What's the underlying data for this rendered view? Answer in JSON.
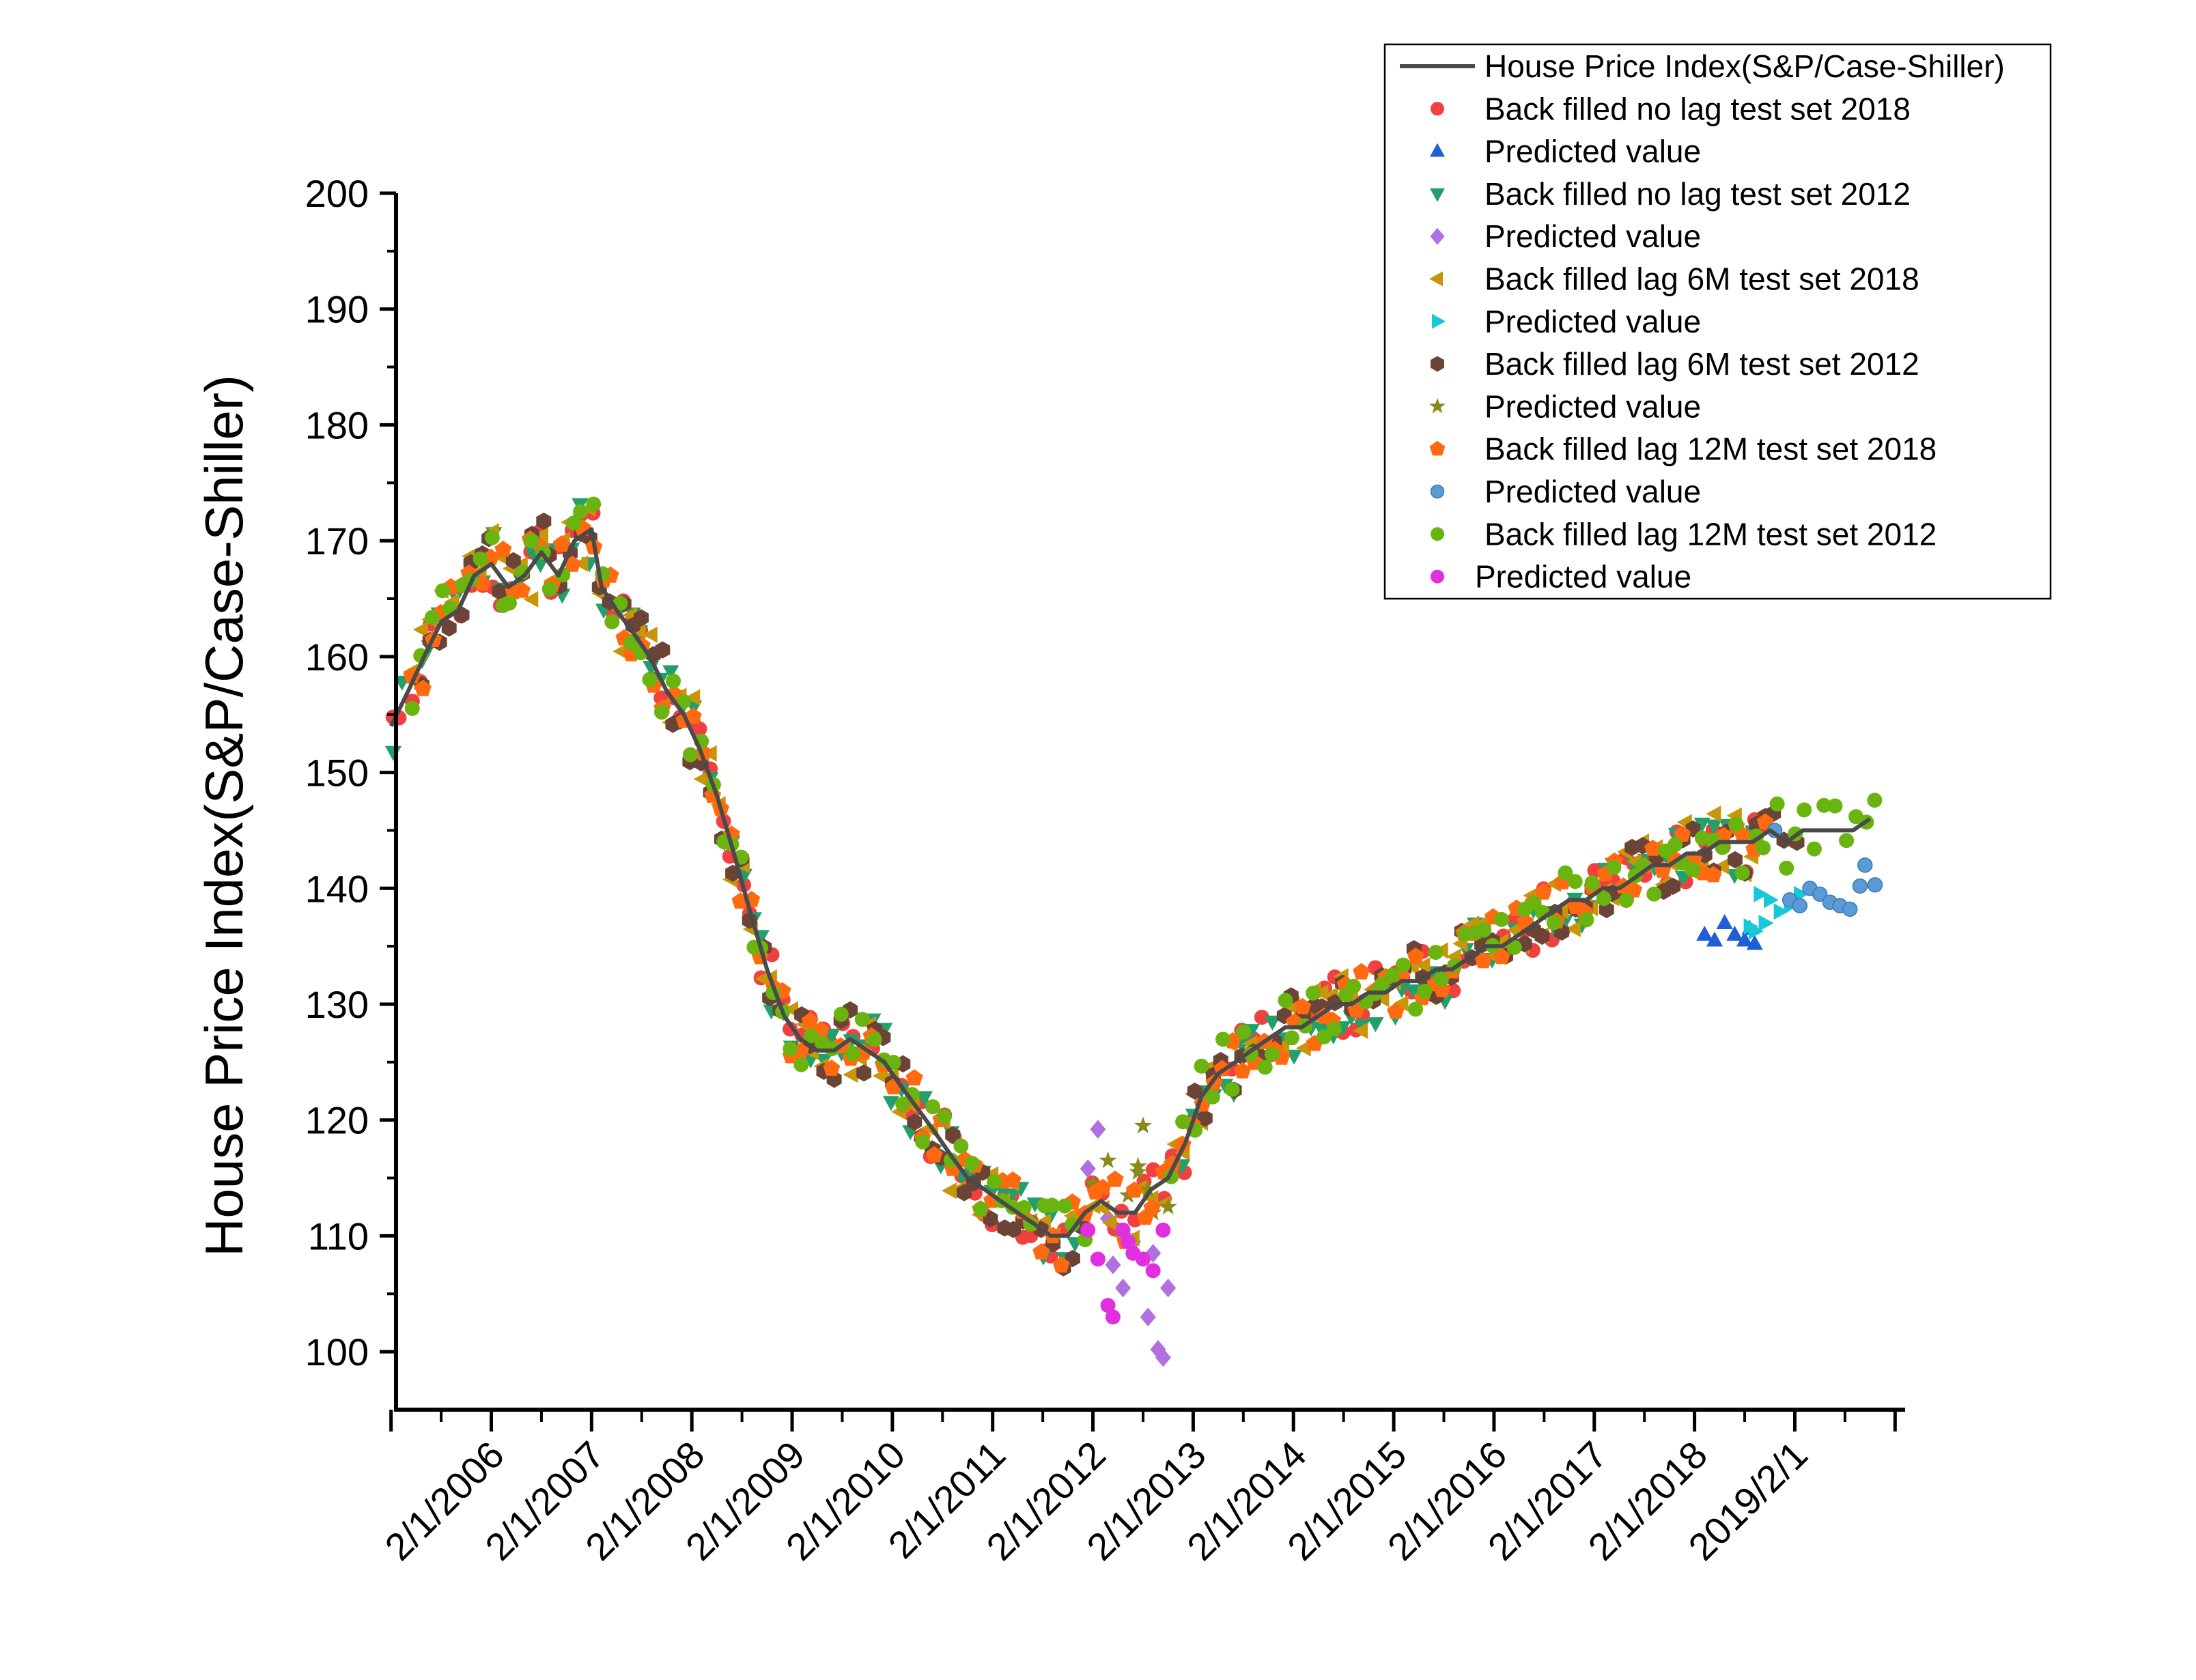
{
  "chart_data": {
    "type": "scatter",
    "title": "",
    "ylabel": "House Price Index(S&P/Case-Shiller)",
    "xlabel": "",
    "ylim": [
      95,
      200
    ],
    "yticks": [
      100,
      110,
      120,
      130,
      140,
      150,
      160,
      170,
      180,
      190,
      200
    ],
    "x_tick_labels": [
      "2/1/2006",
      "2/1/2007",
      "2/1/2008",
      "2/1/2009",
      "2/1/2010",
      "2/1/2011",
      "2/1/2012",
      "2/1/2013",
      "2/1/2014",
      "2/1/2015",
      "2/1/2016",
      "2/1/2017",
      "2/1/2018",
      "2019/2/1"
    ],
    "x_tick_values": [
      2006,
      2007,
      2008,
      2009,
      2010,
      2011,
      2012,
      2013,
      2014,
      2015,
      2016,
      2017,
      2018,
      2019
    ],
    "xlim": [
      2005.05,
      2020.1
    ],
    "legend_position": "top-right",
    "line": {
      "name": "House Price Index(S&P/Case-Shiller)",
      "color": "#4a4a4a",
      "x": [
        2005.0,
        2005.17,
        2005.33,
        2005.5,
        2005.67,
        2005.83,
        2006.0,
        2006.17,
        2006.33,
        2006.5,
        2006.67,
        2006.83,
        2007.0,
        2007.1,
        2007.25,
        2007.42,
        2007.58,
        2007.75,
        2007.92,
        2008.08,
        2008.25,
        2008.42,
        2008.58,
        2008.75,
        2008.92,
        2009.08,
        2009.25,
        2009.42,
        2009.58,
        2009.75,
        2009.92,
        2010.08,
        2010.25,
        2010.42,
        2010.58,
        2010.75,
        2010.92,
        2011.08,
        2011.25,
        2011.42,
        2011.58,
        2011.75,
        2011.92,
        2012.08,
        2012.25,
        2012.42,
        2012.58,
        2012.75,
        2012.92,
        2013.08,
        2013.25,
        2013.42,
        2013.58,
        2013.75,
        2013.92,
        2014.08,
        2014.25,
        2014.42,
        2014.58,
        2014.75,
        2014.92,
        2015.08,
        2015.25,
        2015.42,
        2015.58,
        2015.75,
        2015.92,
        2016.08,
        2016.25,
        2016.42,
        2016.58,
        2016.75,
        2016.92,
        2017.08,
        2017.25,
        2017.42,
        2017.58,
        2017.75,
        2017.92,
        2018.08,
        2018.25,
        2018.42,
        2018.58,
        2018.75,
        2018.92,
        2019.08,
        2019.25,
        2019.42,
        2019.58,
        2019.75
      ],
      "y": [
        154,
        157,
        160,
        163,
        164,
        167,
        168,
        166,
        167,
        169,
        167,
        170,
        171,
        166,
        164,
        162,
        160,
        157,
        155,
        152,
        148,
        143,
        138,
        133,
        129,
        127,
        126,
        126,
        127,
        126,
        125,
        123,
        121,
        119,
        117,
        115,
        114,
        113,
        112,
        111,
        110,
        110,
        112,
        113,
        112,
        112,
        114,
        115,
        118,
        122,
        124,
        125,
        126,
        127,
        128,
        128,
        129,
        130,
        130,
        131,
        131,
        132,
        132,
        133,
        133,
        134,
        135,
        135,
        136,
        137,
        138,
        139,
        139,
        140,
        140,
        141,
        142,
        142,
        143,
        143,
        144,
        144,
        144,
        145,
        144,
        145,
        145,
        145,
        145,
        146
      ]
    },
    "series": [
      {
        "name": "Back filled no lag test set 2018",
        "marker": "circle",
        "color": "#f04040",
        "jitter": 2.6,
        "seed": 11,
        "step": 0.1,
        "range": [
          2005.0,
          2018.7
        ]
      },
      {
        "name": "Predicted value",
        "marker": "triangle-up",
        "color": "#1f5fd6",
        "points": [
          [
            2018.1,
            136
          ],
          [
            2018.2,
            135.5
          ],
          [
            2018.3,
            137
          ],
          [
            2018.4,
            136
          ],
          [
            2018.5,
            135.5
          ],
          [
            2018.55,
            136.5
          ],
          [
            2018.6,
            135.2
          ]
        ]
      },
      {
        "name": "Back filled no lag test set 2012",
        "marker": "triangle-down",
        "color": "#22a06b",
        "jitter": 3.0,
        "seed": 23,
        "step": 0.1,
        "range": [
          2005.0,
          2011.8
        ],
        "extra_range": [
          2012.8,
          2018.6
        ]
      },
      {
        "name": "Predicted value",
        "marker": "diamond",
        "color": "#b070e0",
        "points": [
          [
            2011.95,
            115.8
          ],
          [
            2012.05,
            119.2
          ],
          [
            2012.15,
            111.5
          ],
          [
            2012.3,
            105.5
          ],
          [
            2012.4,
            109.5
          ],
          [
            2012.55,
            103
          ],
          [
            2012.65,
            100.2
          ],
          [
            2012.7,
            99.5
          ],
          [
            2012.75,
            105.5
          ],
          [
            2012.6,
            108.5
          ],
          [
            2012.2,
            107.5
          ]
        ]
      },
      {
        "name": "Back filled lag 6M test set 2018",
        "marker": "triangle-left",
        "color": "#c8960a",
        "jitter": 3.0,
        "seed": 37,
        "step": 0.1,
        "range": [
          2005.2,
          2018.6
        ]
      },
      {
        "name": "Predicted value",
        "marker": "triangle-right",
        "color": "#18c8d8",
        "points": [
          [
            2018.55,
            136.7
          ],
          [
            2018.65,
            139.5
          ],
          [
            2018.75,
            139
          ],
          [
            2018.85,
            138
          ],
          [
            2018.95,
            138.5
          ],
          [
            2019.05,
            139.5
          ],
          [
            2018.7,
            137
          ],
          [
            2018.6,
            136.3
          ]
        ]
      },
      {
        "name": "Back filled lag 6M test set 2012",
        "marker": "hexagon",
        "color": "#6b4437",
        "jitter": 2.8,
        "seed": 49,
        "step": 0.1,
        "range": [
          2005.3,
          2011.9
        ],
        "extra_range": [
          2013.0,
          2019.0
        ]
      },
      {
        "name": "Predicted value",
        "marker": "star",
        "color": "#8a8a1a",
        "points": [
          [
            2012.0,
            114.5
          ],
          [
            2012.15,
            116.5
          ],
          [
            2012.3,
            110
          ],
          [
            2012.45,
            116
          ],
          [
            2012.5,
            119.5
          ],
          [
            2012.55,
            114
          ],
          [
            2012.6,
            112
          ],
          [
            2012.75,
            112.5
          ],
          [
            2012.35,
            113.5
          ],
          [
            2012.45,
            115.5
          ]
        ]
      },
      {
        "name": "Back filled lag 12M test set 2018",
        "marker": "pentagon",
        "color": "#ff6a10",
        "jitter": 2.6,
        "seed": 61,
        "step": 0.1,
        "range": [
          2005.2,
          2018.7
        ]
      },
      {
        "name": "Predicted value",
        "marker": "sphere",
        "color": "#5a9bd5",
        "points": [
          [
            2018.8,
            145
          ],
          [
            2018.95,
            139
          ],
          [
            2019.05,
            138.5
          ],
          [
            2019.15,
            140
          ],
          [
            2019.25,
            139.5
          ],
          [
            2019.35,
            138.8
          ],
          [
            2019.45,
            138.5
          ],
          [
            2019.55,
            138.2
          ],
          [
            2019.65,
            140.2
          ],
          [
            2019.7,
            142
          ],
          [
            2019.8,
            140.3
          ]
        ]
      },
      {
        "name": "Back filled lag 12M test set 2012",
        "marker": "circle",
        "color": "#6ab410",
        "jitter": 2.7,
        "seed": 73,
        "step": 0.1,
        "range": [
          2005.2,
          2011.9
        ],
        "extra_range": [
          2012.8,
          2019.8
        ]
      },
      {
        "name": "Predicted value",
        "marker": "circle",
        "color": "#e030e0",
        "points": [
          [
            2011.95,
            110.5
          ],
          [
            2012.05,
            108
          ],
          [
            2012.15,
            104
          ],
          [
            2012.2,
            103
          ],
          [
            2012.3,
            110.5
          ],
          [
            2012.4,
            108.5
          ],
          [
            2012.5,
            108
          ],
          [
            2012.6,
            107
          ],
          [
            2012.7,
            110.5
          ],
          [
            2012.35,
            109.5
          ]
        ]
      }
    ]
  }
}
